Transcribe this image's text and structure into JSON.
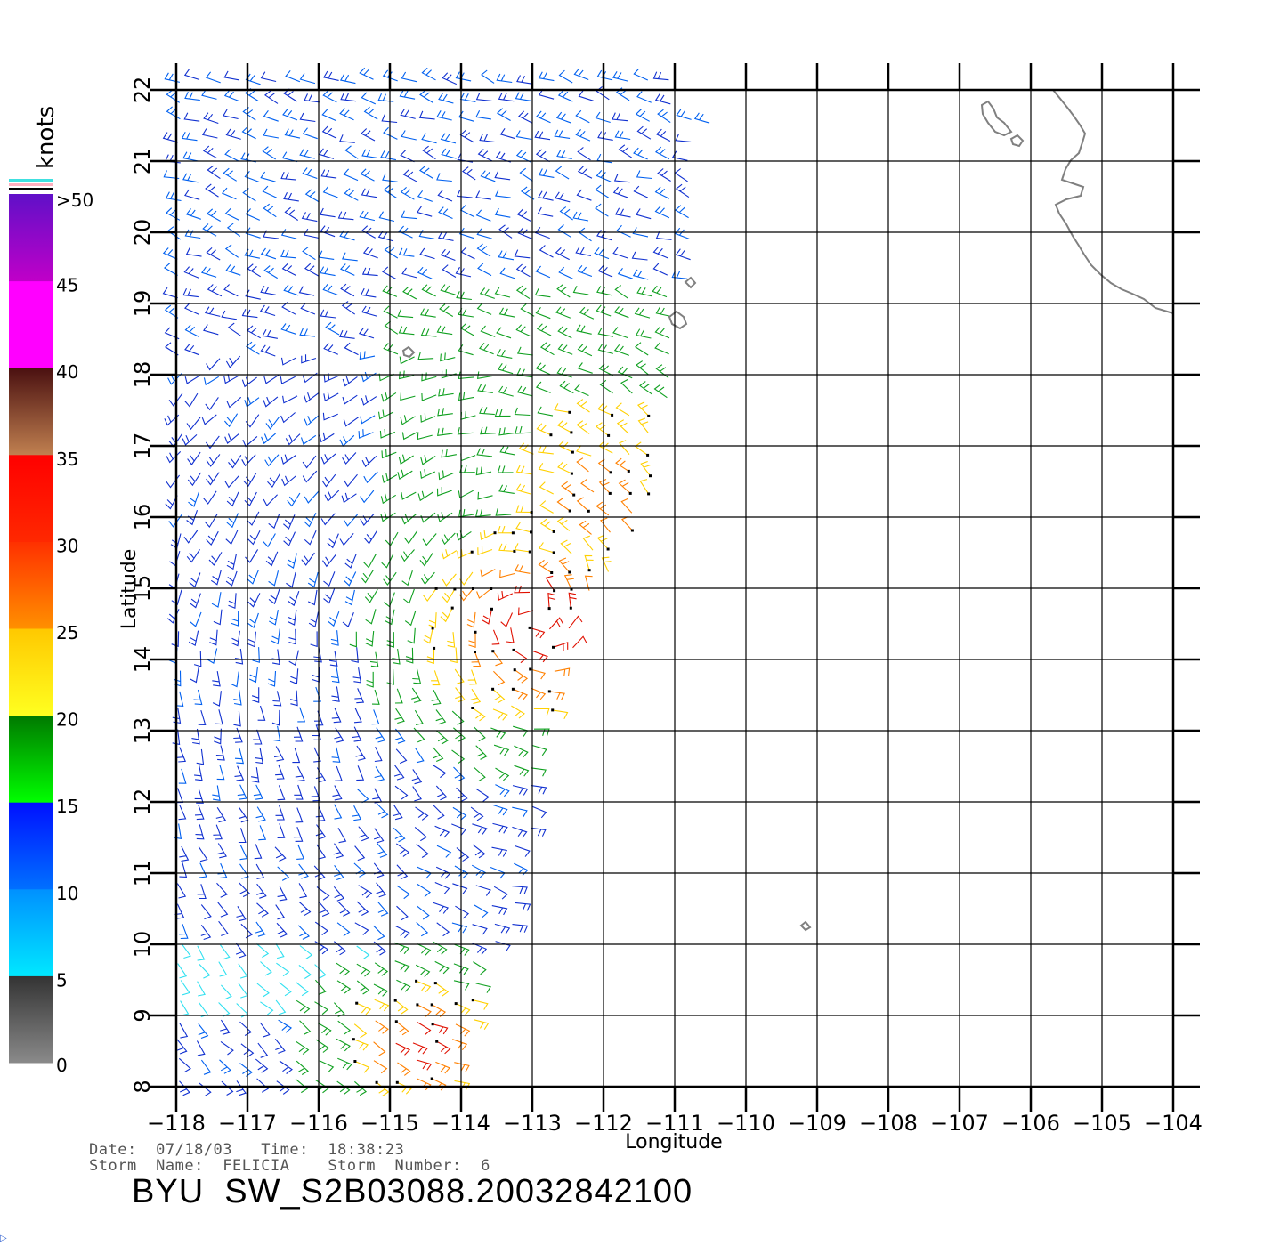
{
  "map": {
    "x_axis_title": "Longitude",
    "y_axis_title": "Latitude",
    "lon_ticks": [
      "-118",
      "-117",
      "-116",
      "-115",
      "-114",
      "-113",
      "-112",
      "-111",
      "-110",
      "-109",
      "-108",
      "-107",
      "-106",
      "-105",
      "-104"
    ],
    "lat_ticks": [
      "8",
      "9",
      "10",
      "11",
      "12",
      "13",
      "14",
      "15",
      "16",
      "17",
      "18",
      "19",
      "20",
      "21",
      "22"
    ],
    "lon_range": [
      -118,
      -104
    ],
    "lat_range": [
      8,
      22
    ],
    "grid": true,
    "coastline_color": "#808080",
    "grid_color": "#000000"
  },
  "legend": {
    "units": "knots",
    "labels": [
      ">50",
      "45",
      "40",
      "35",
      "30",
      "25",
      "20",
      "15",
      "10",
      "5",
      "0"
    ],
    "bands": [
      {
        "from": 0,
        "to": 5,
        "top_color": "#333333",
        "bottom_color": "#8a8a8a"
      },
      {
        "from": 5,
        "to": 10,
        "top_color": "#0090ff",
        "bottom_color": "#00e8ff"
      },
      {
        "from": 10,
        "to": 15,
        "top_color": "#0010ff",
        "bottom_color": "#0070ff"
      },
      {
        "from": 15,
        "to": 20,
        "top_color": "#007800",
        "bottom_color": "#00ff00"
      },
      {
        "from": 20,
        "to": 25,
        "top_color": "#ffc800",
        "bottom_color": "#ffff20"
      },
      {
        "from": 25,
        "to": 30,
        "top_color": "#ff3000",
        "bottom_color": "#ff9000"
      },
      {
        "from": 30,
        "to": 35,
        "top_color": "#ff0000",
        "bottom_color": "#ff2800"
      },
      {
        "from": 35,
        "to": 40,
        "top_color": "#4a1010",
        "bottom_color": "#c08050"
      },
      {
        "from": 40,
        "to": 45,
        "top_color": "#ff00ff",
        "bottom_color": "#ff00ff"
      },
      {
        "from": 45,
        "to": 50,
        "top_color": "#6010c8",
        "bottom_color": "#c000c8"
      }
    ],
    "cap_colors": [
      "#40e0e0",
      "#ffb0c0",
      "#000000"
    ]
  },
  "info": {
    "date_line": "Date:  07/18/03   Time:  18:38:23",
    "storm_line": "Storm  Name:  FELICIA    Storm  Number:  6"
  },
  "product": {
    "title": "BYU  SW_S2B03088.20032842100"
  },
  "wind_field": {
    "description_colors": {
      "calm": "#30e0f0",
      "light": "#0060f0",
      "moderate": "#1030d0",
      "fresh": "#10a020",
      "strong": "#ffd000",
      "gale": "#ff8000",
      "storm": "#e01000"
    }
  }
}
